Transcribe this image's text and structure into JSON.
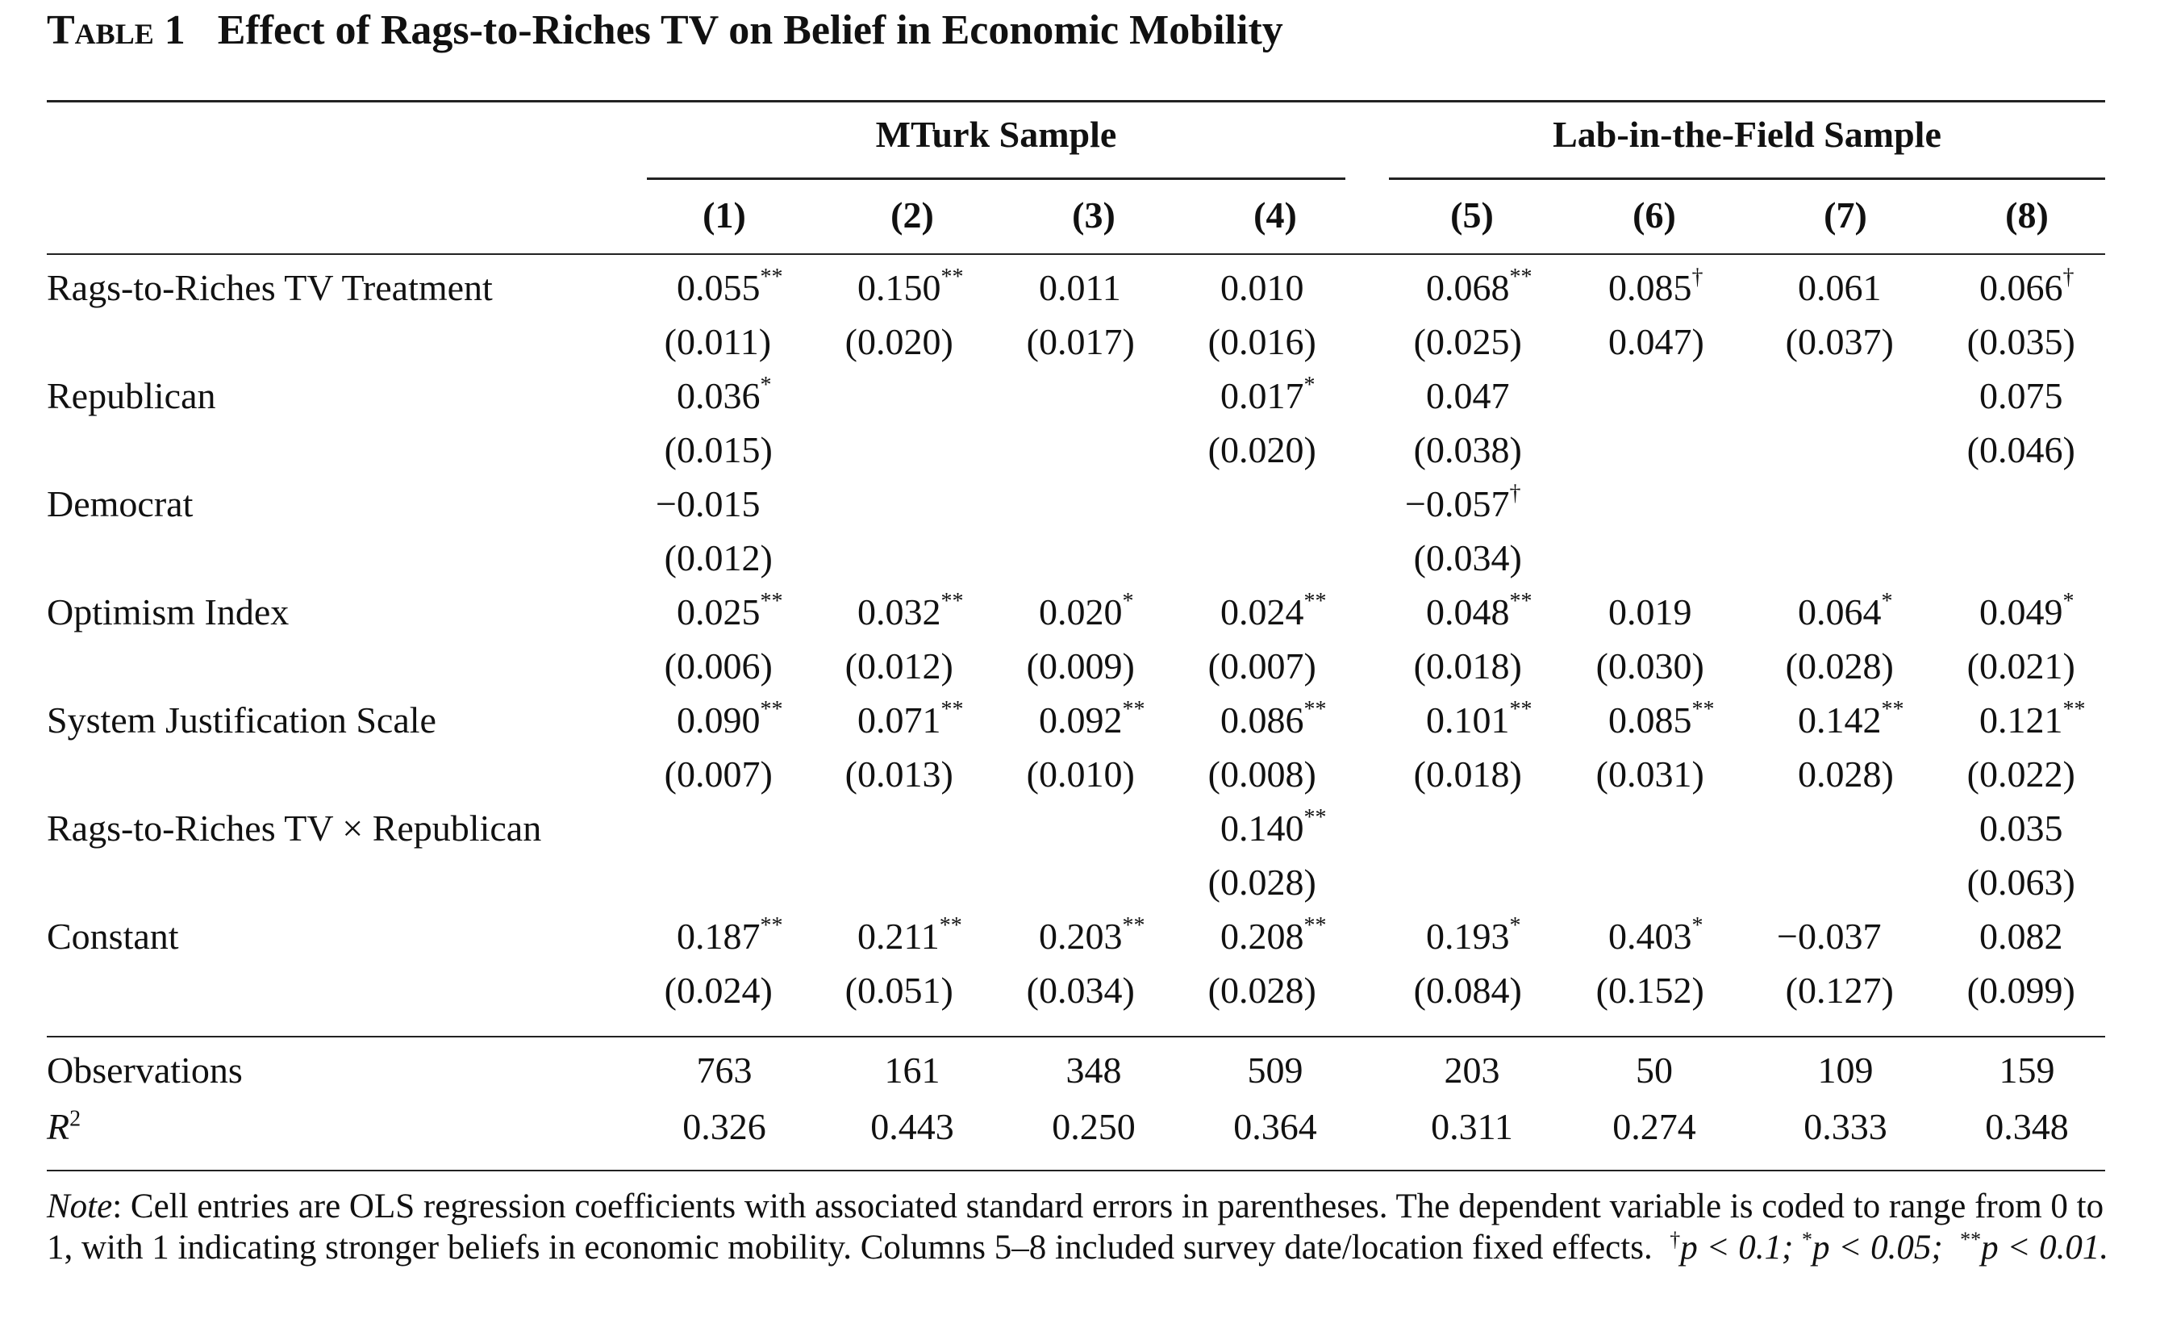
{
  "title": {
    "number": "Table 1",
    "text": "Effect of Rags-to-Riches TV on Belief in Economic Mobility"
  },
  "groups": {
    "mturk": "MTurk Sample",
    "lab": "Lab-in-the-Field Sample"
  },
  "columns": [
    "(1)",
    "(2)",
    "(3)",
    "(4)",
    "(5)",
    "(6)",
    "(7)",
    "(8)"
  ],
  "rows": [
    {
      "label": "Rags-to-Riches TV Treatment",
      "coef": [
        "0.055**",
        "0.150**",
        "0.011",
        "0.010",
        "0.068**",
        "0.085†",
        "0.061",
        "0.066†"
      ],
      "se": [
        "(0.011)",
        "(0.020)",
        "(0.017)",
        "(0.016)",
        "(0.025)",
        "0.047)",
        "(0.037)",
        "(0.035)"
      ]
    },
    {
      "label": "Republican",
      "coef": [
        "0.036*",
        "",
        "",
        "0.017*",
        "0.047",
        "",
        "",
        "0.075"
      ],
      "se": [
        "(0.015)",
        "",
        "",
        "(0.020)",
        "(0.038)",
        "",
        "",
        "(0.046)"
      ]
    },
    {
      "label": "Democrat",
      "coef": [
        "−0.015",
        "",
        "",
        "",
        "−0.057†",
        "",
        "",
        ""
      ],
      "se": [
        "(0.012)",
        "",
        "",
        "",
        "(0.034)",
        "",
        "",
        ""
      ]
    },
    {
      "label": "Optimism Index",
      "coef": [
        "0.025**",
        "0.032**",
        "0.020*",
        "0.024**",
        "0.048**",
        "0.019",
        "0.064*",
        "0.049*"
      ],
      "se": [
        "(0.006)",
        "(0.012)",
        "(0.009)",
        "(0.007)",
        "(0.018)",
        "(0.030)",
        "(0.028)",
        "(0.021)"
      ]
    },
    {
      "label": "System Justification Scale",
      "coef": [
        "0.090**",
        "0.071**",
        "0.092**",
        "0.086**",
        "0.101**",
        "0.085**",
        "0.142**",
        "0.121**"
      ],
      "se": [
        "(0.007)",
        "(0.013)",
        "(0.010)",
        "(0.008)",
        "(0.018)",
        "(0.031)",
        "0.028)",
        "(0.022)"
      ]
    },
    {
      "label": "Rags-to-Riches TV × Republican",
      "coef": [
        "",
        "",
        "",
        "0.140**",
        "",
        "",
        "",
        "0.035"
      ],
      "se": [
        "",
        "",
        "",
        "(0.028)",
        "",
        "",
        "",
        "(0.063)"
      ]
    },
    {
      "label": "Constant",
      "coef": [
        "0.187**",
        "0.211**",
        "0.203**",
        "0.208**",
        "0.193*",
        "0.403*",
        "−0.037",
        "0.082"
      ],
      "se": [
        "(0.024)",
        "(0.051)",
        "(0.034)",
        "(0.028)",
        "(0.084)",
        "(0.152)",
        "(0.127)",
        "(0.099)"
      ]
    }
  ],
  "stats": [
    {
      "label": "Observations",
      "values": [
        "763",
        "161",
        "348",
        "509",
        "203",
        "50",
        "109",
        "159"
      ]
    },
    {
      "label_main": "R",
      "label_sup": "2",
      "values": [
        "0.326",
        "0.443",
        "0.250",
        "0.364",
        "0.311",
        "0.274",
        "0.333",
        "0.348"
      ]
    }
  ],
  "note": {
    "lead": "Note",
    "body": ": Cell entries are OLS regression coefficients with associated standard errors in parentheses. The dependent variable is coded to range from 0 to 1, with 1 indicating stronger beliefs in economic mobility. Columns 5–8 included survey date/location fixed effects.",
    "sig1_mark": "†",
    "sig1_text": "p < 0.1;",
    "sig2_mark": "*",
    "sig2_text": "p < 0.05;",
    "sig3_mark": "**",
    "sig3_text": "p < 0.01."
  }
}
